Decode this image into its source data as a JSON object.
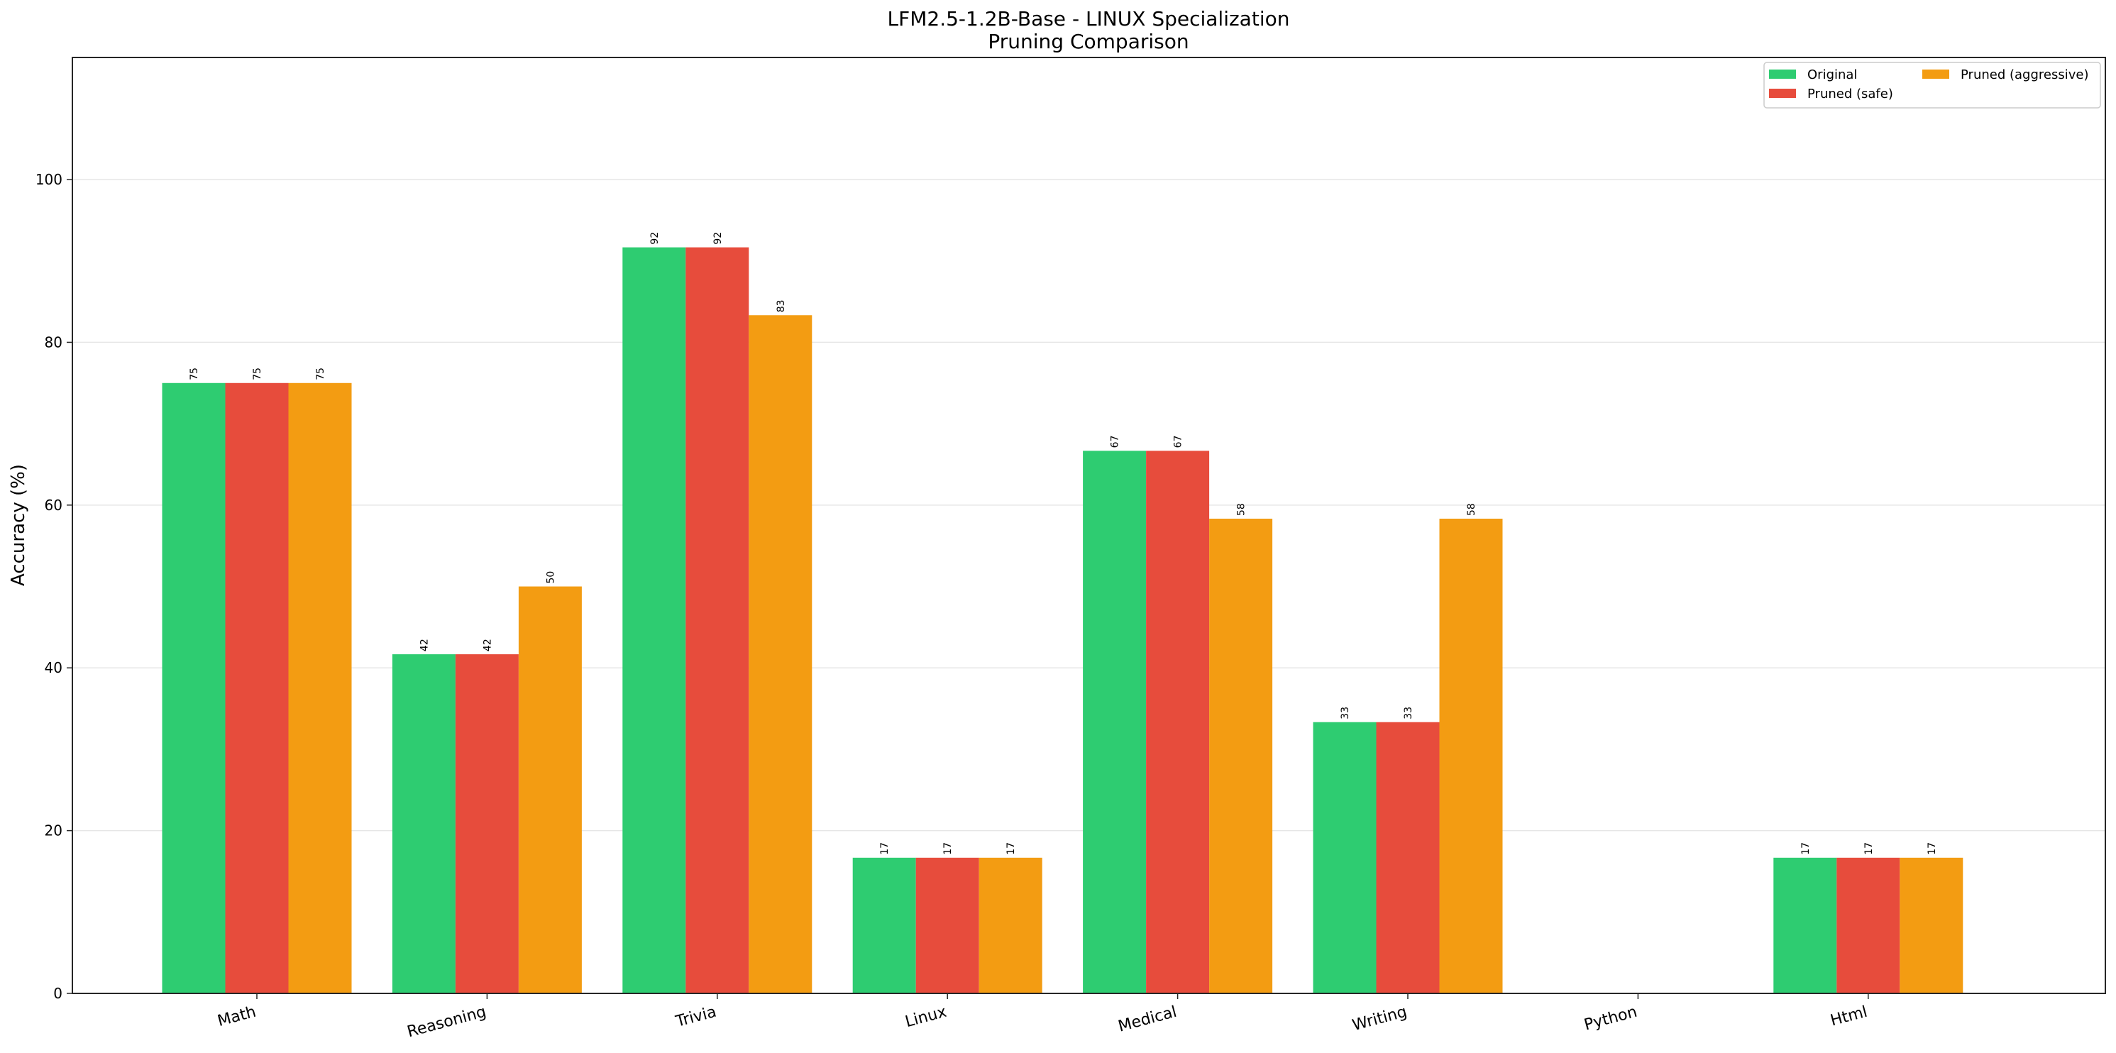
{
  "chart_data": {
    "type": "bar",
    "title": "LFM2.5-1.2B-Base - LINUX Specialization",
    "subtitle": "Pruning Comparison",
    "xlabel": "",
    "ylabel": "Accuracy (%)",
    "ylim": [
      0,
      115
    ],
    "yticks": [
      0,
      20,
      40,
      60,
      80,
      100
    ],
    "grid": "y",
    "legend_position": "upper right",
    "legend_columns": 2,
    "categories": [
      "Math",
      "Reasoning",
      "Trivia",
      "Linux",
      "Medical",
      "Writing",
      "Python",
      "Html"
    ],
    "series": [
      {
        "name": "Original",
        "color": "#2ecc71",
        "values": [
          75.0,
          41.67,
          91.67,
          16.67,
          66.67,
          33.33,
          0,
          16.67
        ],
        "labels": [
          "75",
          "42",
          "92",
          "17",
          "67",
          "33",
          "",
          "17"
        ]
      },
      {
        "name": "Pruned (safe)",
        "color": "#e74c3c",
        "values": [
          75.0,
          41.67,
          91.67,
          16.67,
          66.67,
          33.33,
          0,
          16.67
        ],
        "labels": [
          "75",
          "42",
          "92",
          "17",
          "67",
          "33",
          "",
          "17"
        ]
      },
      {
        "name": "Pruned (aggressive)",
        "color": "#f39c12",
        "values": [
          75.0,
          50.0,
          83.33,
          16.67,
          58.33,
          58.33,
          0,
          16.67
        ],
        "labels": [
          "75",
          "50",
          "83",
          "17",
          "58",
          "58",
          "",
          "17"
        ]
      }
    ]
  }
}
